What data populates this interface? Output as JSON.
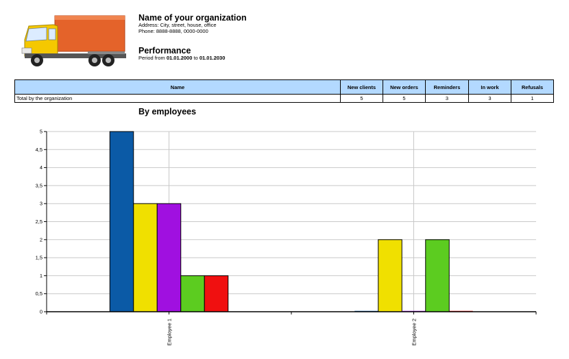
{
  "header": {
    "org_name": "Name of your organization",
    "address": "Address: City, street, house, office",
    "phone": "Phone: 8888-8888, 0000-0000",
    "report_title": "Performance",
    "period_prefix": "Period from",
    "period_from": "01.01.2000",
    "period_to_word": "to",
    "period_to": "01.01.2030"
  },
  "logo": {
    "icon": "truck-icon",
    "body_color": "#f5c800",
    "cargo_color": "#e4632a"
  },
  "summary_table": {
    "columns": [
      "Name",
      "New clients",
      "New orders",
      "Reminders",
      "In work",
      "Refusals"
    ],
    "rows": [
      {
        "name": "Total by the organization",
        "values": [
          "5",
          "5",
          "3",
          "3",
          "1"
        ]
      }
    ],
    "header_color": "#b3d9ff"
  },
  "chart_data": {
    "type": "bar",
    "title": "By employees",
    "categories": [
      "Employee 1",
      "Employee 2"
    ],
    "series": [
      {
        "values": [
          5,
          0
        ],
        "color": "#0b5aa6"
      },
      {
        "values": [
          3,
          2
        ],
        "color": "#f0e000"
      },
      {
        "values": [
          3,
          0
        ],
        "color": "#a010e0"
      },
      {
        "values": [
          1,
          2
        ],
        "color": "#5ccc20"
      },
      {
        "values": [
          1,
          0
        ],
        "color": "#f01010"
      }
    ],
    "yticks": [
      "0",
      "0,5",
      "1",
      "1,5",
      "2",
      "2,5",
      "3",
      "3,5",
      "4",
      "4,5",
      "5"
    ],
    "ylim": [
      0,
      5
    ],
    "grid": true
  }
}
